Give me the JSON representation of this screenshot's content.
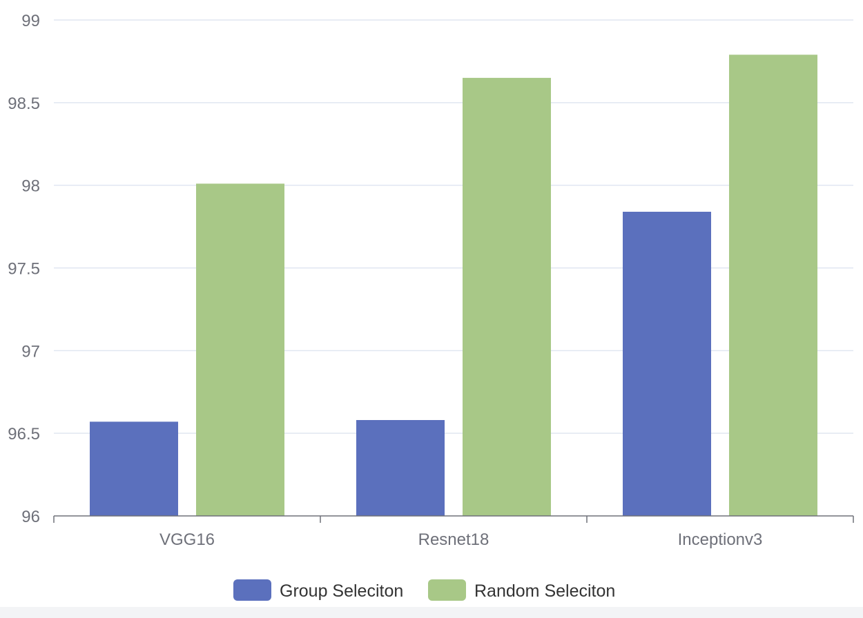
{
  "chart_data": {
    "type": "bar",
    "title": "",
    "xlabel": "",
    "ylabel": "",
    "categories": [
      "VGG16",
      "Resnet18",
      "Inceptionv3"
    ],
    "series": [
      {
        "name": "Group Seleciton",
        "color": "#5b70bd",
        "values": [
          96.57,
          96.58,
          97.84
        ]
      },
      {
        "name": "Random Seleciton",
        "color": "#a8c887",
        "values": [
          98.01,
          98.65,
          98.79
        ]
      }
    ],
    "ylim": [
      96,
      99
    ],
    "yticks": [
      "96",
      "96.5",
      "97",
      "97.5",
      "98",
      "98.5",
      "99"
    ],
    "grid": true,
    "legend_position": "bottom-center"
  }
}
